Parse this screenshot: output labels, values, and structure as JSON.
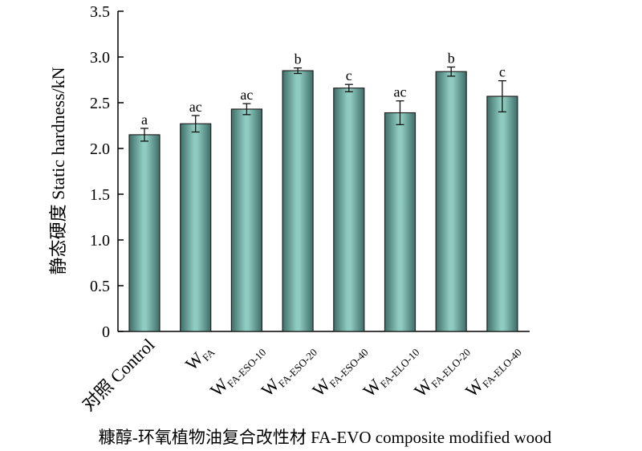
{
  "chart_data": {
    "type": "bar",
    "title": "",
    "xlabel": "糠醇-环氧植物油复合改性材 FA-EVO composite modified wood",
    "ylabel": "静态硬度 Static hardness/kN",
    "ylim": [
      0,
      3.5
    ],
    "yticks": [
      "0",
      "0.5",
      "1.0",
      "1.5",
      "2.0",
      "2.5",
      "3.0",
      "3.5"
    ],
    "categories": [
      {
        "main": "对照 Control",
        "sub": ""
      },
      {
        "main": "W",
        "sub": "FA"
      },
      {
        "main": "W",
        "sub": "FA-ESO-10"
      },
      {
        "main": "W",
        "sub": "FA-ESO-20"
      },
      {
        "main": "W",
        "sub": "FA-ESO-40"
      },
      {
        "main": "W",
        "sub": "FA-ELO-10"
      },
      {
        "main": "W",
        "sub": "FA-ELO-20"
      },
      {
        "main": "W",
        "sub": "FA-ELO-40"
      }
    ],
    "values": [
      2.15,
      2.27,
      2.43,
      2.85,
      2.66,
      2.39,
      2.84,
      2.57
    ],
    "errors": [
      0.07,
      0.09,
      0.06,
      0.03,
      0.04,
      0.13,
      0.05,
      0.17
    ],
    "significance": [
      "a",
      "ac",
      "ac",
      "b",
      "c",
      "ac",
      "b",
      "c"
    ],
    "bar_color": "#7fbfb4",
    "grid": false
  }
}
